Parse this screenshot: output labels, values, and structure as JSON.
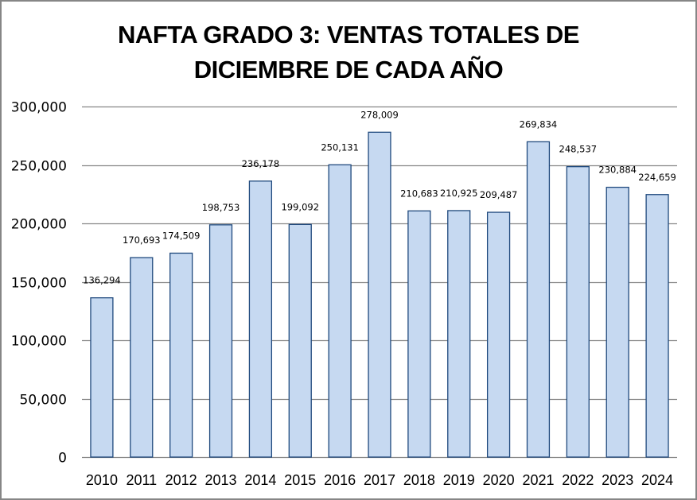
{
  "chart_data": {
    "type": "bar",
    "title_lines": [
      "NAFTA GRADO 3: VENTAS TOTALES DE",
      "DICIEMBRE DE CADA AÑO"
    ],
    "xlabel": "",
    "ylabel": "",
    "categories": [
      "2010",
      "2011",
      "2012",
      "2013",
      "2014",
      "2015",
      "2016",
      "2017",
      "2018",
      "2019",
      "2020",
      "2021",
      "2022",
      "2023",
      "2024"
    ],
    "values": [
      136294,
      170693,
      174509,
      198753,
      236178,
      199092,
      250131,
      278009,
      210683,
      210925,
      209487,
      269834,
      248537,
      230884,
      224659
    ],
    "data_labels": [
      "136,294",
      "170,693",
      "174,509",
      "198,753",
      "236,178",
      "199,092",
      "250,131",
      "278,009",
      "210,683",
      "210,925",
      "209,487",
      "269,834",
      "248,537",
      "230,884",
      "224,659"
    ],
    "ylim": [
      0,
      300000
    ],
    "yticks": [
      0,
      50000,
      100000,
      150000,
      200000,
      250000,
      300000
    ],
    "ytick_labels": [
      "0",
      "50,000",
      "100,000",
      "150,000",
      "200,000",
      "250,000",
      "300,000"
    ],
    "grid": true,
    "legend": "none",
    "colors": {
      "bar_fill": "#c6d9f1",
      "bar_stroke": "#1f497d",
      "grid": "#868686",
      "axis": "#868686"
    }
  }
}
